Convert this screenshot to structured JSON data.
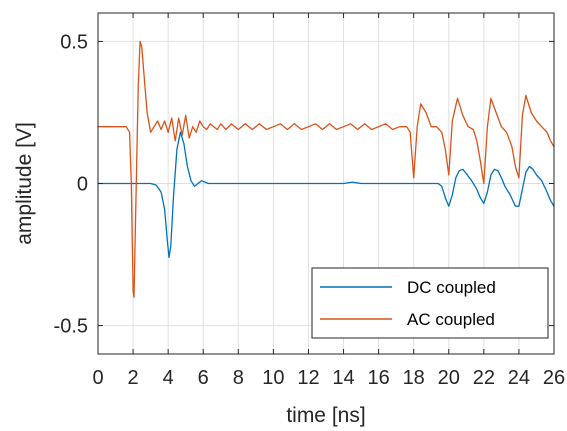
{
  "chart_data": {
    "type": "line",
    "xlabel": "time [ns]",
    "ylabel": "amplitude [V]",
    "xlim": [
      0,
      26
    ],
    "ylim": [
      -0.6,
      0.6
    ],
    "xticks": [
      0,
      2,
      4,
      6,
      8,
      10,
      12,
      14,
      16,
      18,
      20,
      22,
      24,
      26
    ],
    "xtick_labels": [
      "0",
      "2",
      "4",
      "6",
      "8",
      "10",
      "12",
      "14",
      "16",
      "18",
      "20",
      "22",
      "24",
      "26"
    ],
    "yticks": [
      -0.5,
      0,
      0.5
    ],
    "ytick_labels": [
      "-0.5",
      "0",
      "0.5"
    ],
    "grid": true,
    "legend_position": "bottom-right",
    "series": [
      {
        "name": "DC coupled",
        "color": "#0072BD",
        "x": [
          0,
          1.0,
          2.0,
          2.6,
          3.0,
          3.3,
          3.6,
          3.8,
          3.95,
          4.05,
          4.15,
          4.3,
          4.5,
          4.7,
          4.9,
          5.1,
          5.3,
          5.5,
          5.7,
          5.9,
          6.1,
          6.3,
          6.6,
          7.0,
          8.0,
          9.0,
          10.0,
          11.0,
          12.0,
          13.0,
          14.0,
          14.5,
          15.0,
          16.0,
          17.0,
          18.0,
          19.0,
          19.4,
          19.6,
          19.8,
          20.0,
          20.2,
          20.4,
          20.6,
          20.8,
          21.0,
          21.3,
          21.6,
          21.8,
          22.0,
          22.2,
          22.4,
          22.6,
          22.8,
          23.0,
          23.2,
          23.5,
          23.8,
          24.0,
          24.2,
          24.4,
          24.6,
          24.8,
          25.0,
          25.3,
          25.6,
          25.8,
          26.0
        ],
        "y": [
          0,
          0,
          0,
          0,
          0,
          -0.005,
          -0.03,
          -0.09,
          -0.2,
          -0.26,
          -0.22,
          -0.05,
          0.12,
          0.18,
          0.14,
          0.06,
          0.01,
          -0.01,
          0,
          0.01,
          0.005,
          0,
          0,
          0,
          0,
          0,
          0,
          0,
          0,
          0,
          0,
          0.005,
          0,
          0,
          0,
          0,
          0,
          0,
          -0.01,
          -0.05,
          -0.08,
          -0.04,
          0.02,
          0.045,
          0.05,
          0.035,
          0.01,
          -0.02,
          -0.05,
          -0.07,
          -0.03,
          0.03,
          0.05,
          0.045,
          0.02,
          -0.01,
          -0.04,
          -0.08,
          -0.08,
          -0.02,
          0.04,
          0.06,
          0.05,
          0.03,
          0.01,
          -0.03,
          -0.06,
          -0.08
        ]
      },
      {
        "name": "AC coupled",
        "color": "#D95319",
        "x": [
          0,
          1.0,
          1.6,
          1.8,
          1.9,
          2.0,
          2.05,
          2.15,
          2.3,
          2.4,
          2.5,
          2.6,
          2.8,
          3.0,
          3.2,
          3.4,
          3.6,
          3.8,
          4.0,
          4.2,
          4.4,
          4.6,
          4.8,
          5.0,
          5.2,
          5.4,
          5.6,
          5.8,
          6.0,
          6.2,
          6.4,
          6.6,
          6.8,
          7.0,
          7.3,
          7.6,
          8.0,
          8.4,
          8.8,
          9.2,
          9.6,
          10.0,
          10.4,
          10.8,
          11.2,
          11.6,
          12.0,
          12.4,
          12.8,
          13.2,
          13.6,
          14.0,
          14.4,
          14.8,
          15.2,
          15.6,
          16.0,
          16.4,
          16.8,
          17.2,
          17.6,
          17.8,
          17.9,
          18.0,
          18.2,
          18.4,
          18.7,
          19.0,
          19.3,
          19.6,
          19.8,
          20.0,
          20.2,
          20.5,
          20.8,
          21.1,
          21.4,
          21.6,
          21.8,
          22.0,
          22.2,
          22.4,
          22.7,
          23.0,
          23.3,
          23.6,
          23.8,
          24.0,
          24.2,
          24.4,
          24.7,
          25.0,
          25.3,
          25.6,
          25.8,
          26.0
        ],
        "y": [
          0.2,
          0.2,
          0.2,
          0.18,
          0.0,
          -0.38,
          -0.4,
          -0.1,
          0.35,
          0.5,
          0.48,
          0.4,
          0.25,
          0.18,
          0.2,
          0.22,
          0.19,
          0.22,
          0.18,
          0.23,
          0.15,
          0.23,
          0.17,
          0.24,
          0.16,
          0.2,
          0.18,
          0.22,
          0.2,
          0.19,
          0.21,
          0.2,
          0.19,
          0.21,
          0.19,
          0.21,
          0.19,
          0.21,
          0.19,
          0.21,
          0.19,
          0.2,
          0.21,
          0.19,
          0.21,
          0.19,
          0.2,
          0.21,
          0.19,
          0.21,
          0.19,
          0.2,
          0.21,
          0.19,
          0.21,
          0.19,
          0.2,
          0.21,
          0.19,
          0.2,
          0.2,
          0.18,
          0.1,
          0.02,
          0.2,
          0.28,
          0.25,
          0.2,
          0.2,
          0.18,
          0.12,
          0.03,
          0.22,
          0.3,
          0.24,
          0.2,
          0.19,
          0.15,
          0.08,
          0.0,
          0.2,
          0.3,
          0.25,
          0.2,
          0.18,
          0.13,
          0.06,
          0.02,
          0.24,
          0.31,
          0.25,
          0.22,
          0.2,
          0.18,
          0.15,
          0.13
        ]
      }
    ]
  }
}
